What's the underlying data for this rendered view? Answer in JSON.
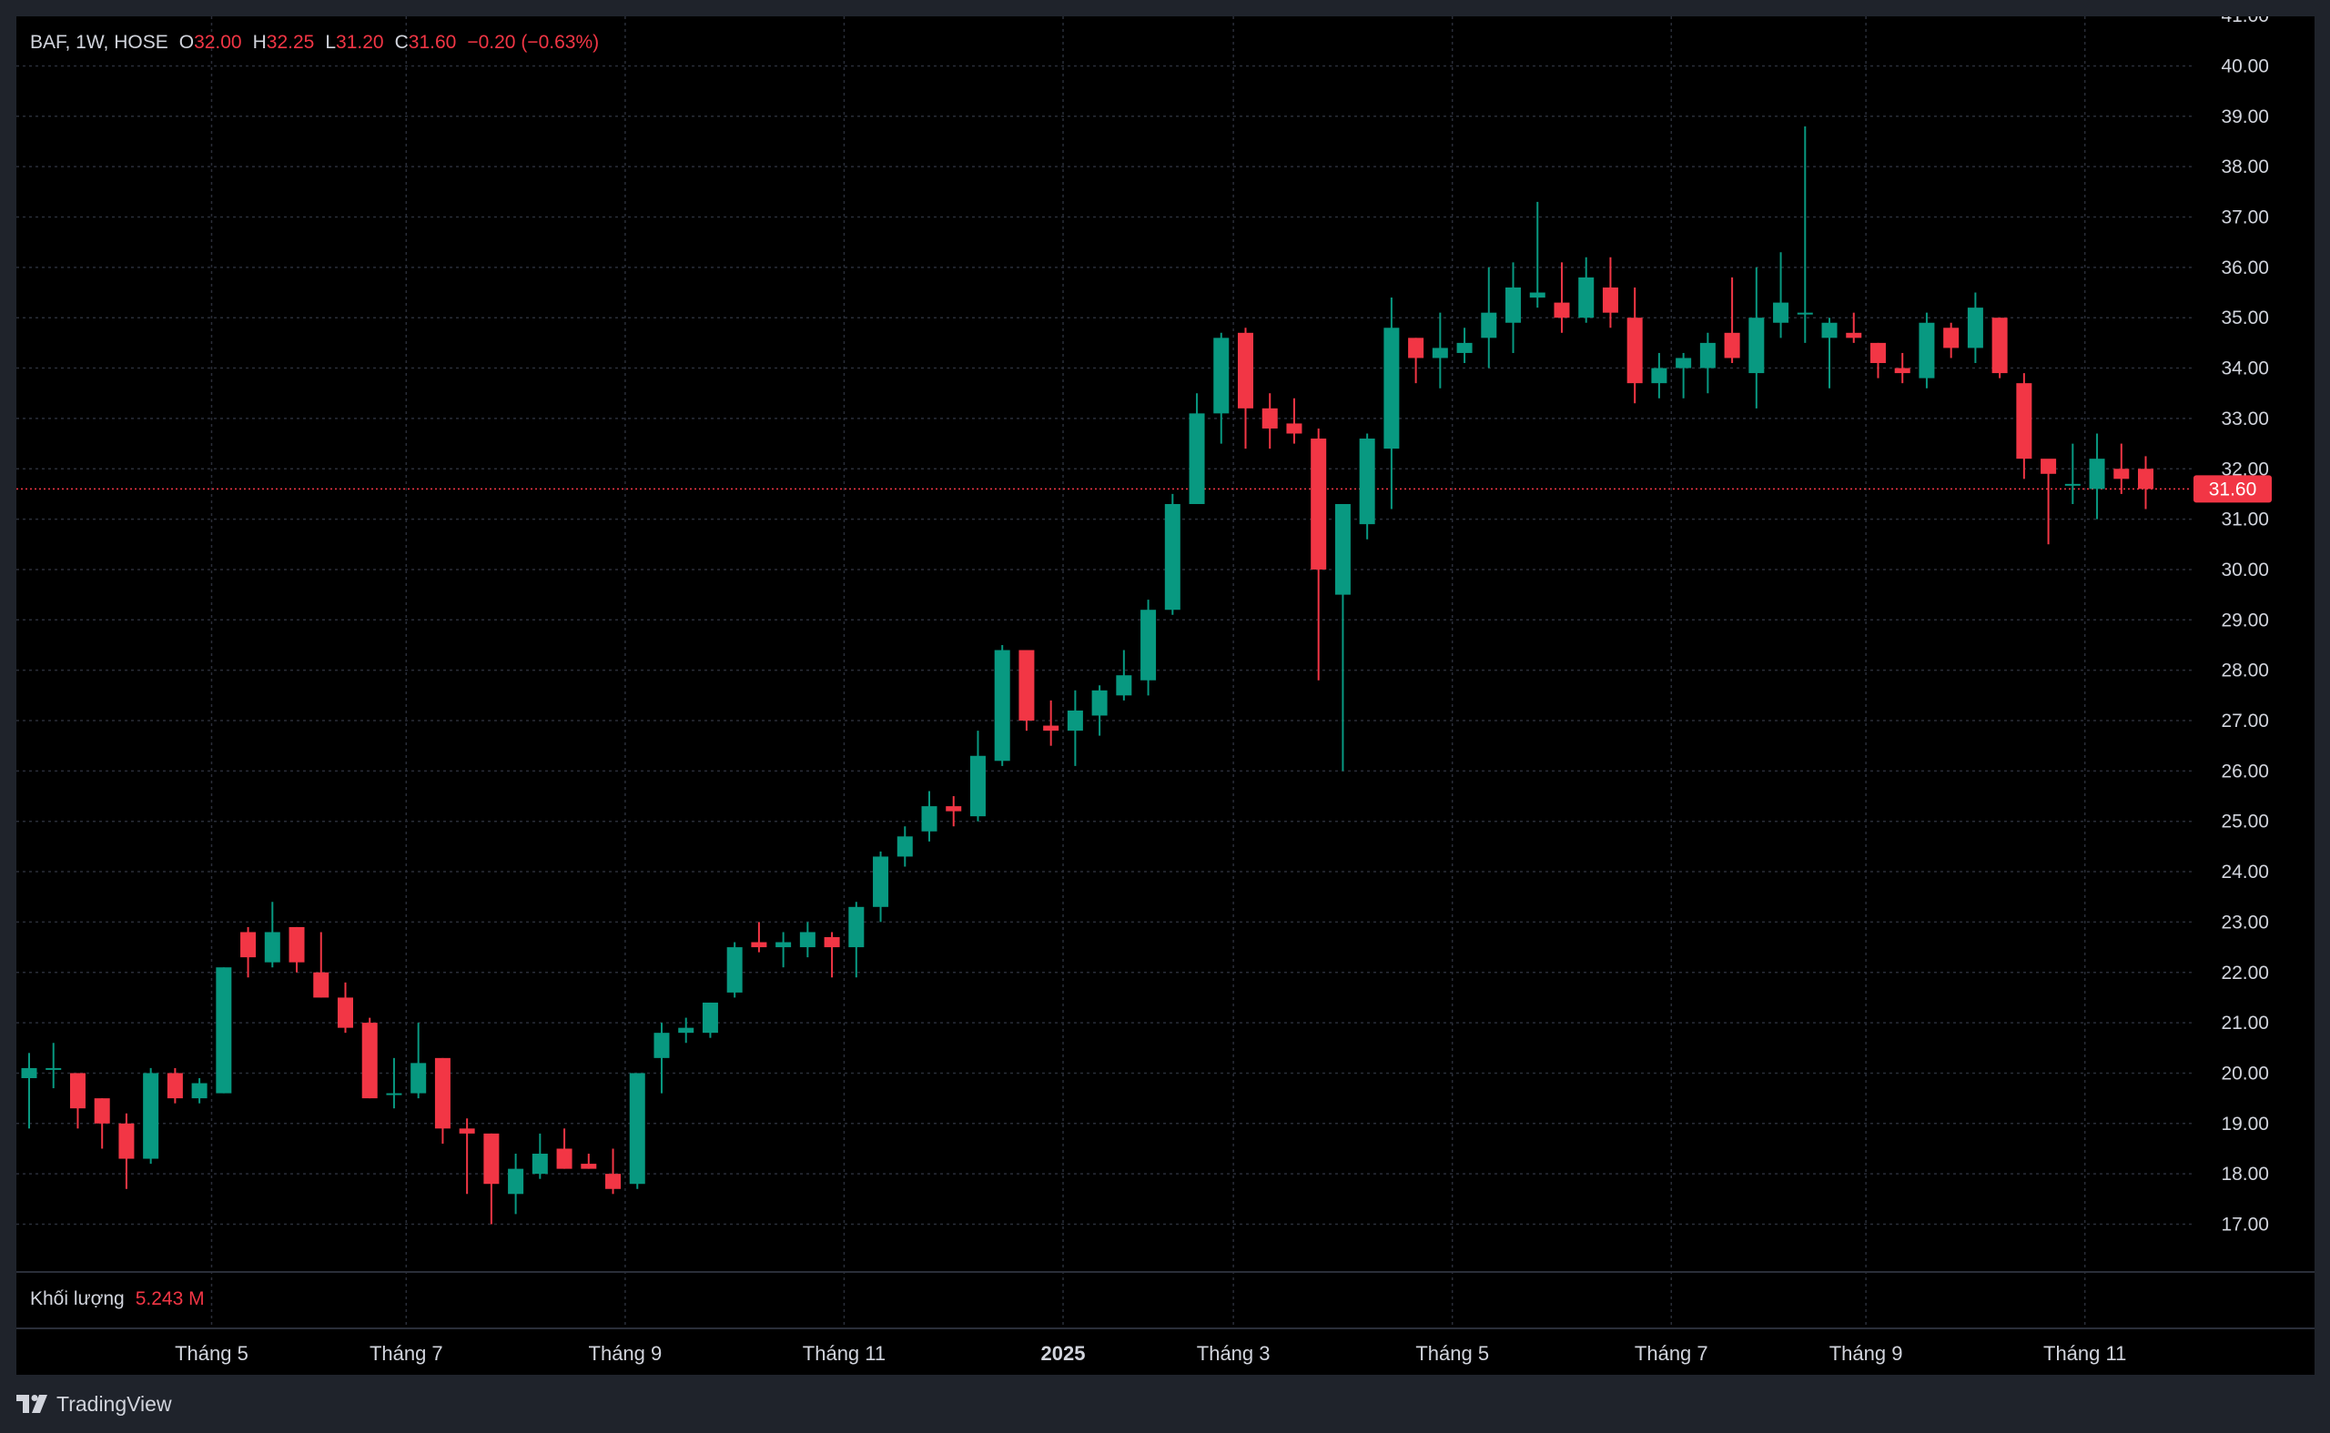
{
  "legend": {
    "symbol": "BAF, 1W, HOSE",
    "o_label": "O",
    "o_value": "32.00",
    "h_label": "H",
    "h_value": "32.25",
    "l_label": "L",
    "l_value": "31.20",
    "c_label": "C",
    "c_value": "31.60",
    "change": "−0.20 (−0.63%)"
  },
  "volume": {
    "label": "Khối lượng",
    "value": "5.243 M"
  },
  "last_price_tag": "31.60",
  "branding": {
    "name": "TradingView",
    "icon": "tradingview-logo-icon"
  },
  "colors": {
    "up": "#089981",
    "down": "#f23645",
    "grid": "#2a2e39",
    "text": "#d1d4dc",
    "price_line": "#f23645"
  },
  "chart_data": {
    "type": "candlestick",
    "timeframe": "1W",
    "ylim": [
      16.0,
      41.0
    ],
    "y_ticks": [
      "17.00",
      "18.00",
      "19.00",
      "20.00",
      "21.00",
      "22.00",
      "23.00",
      "24.00",
      "25.00",
      "26.00",
      "27.00",
      "28.00",
      "29.00",
      "30.00",
      "31.00",
      "32.00",
      "33.00",
      "34.00",
      "35.00",
      "36.00",
      "37.00",
      "38.00",
      "39.00",
      "40.00",
      "41.00"
    ],
    "x_ticks": [
      {
        "label": "Tháng 5",
        "index": 7.5
      },
      {
        "label": "Tháng 7",
        "index": 15.5
      },
      {
        "label": "Tháng 9",
        "index": 24.5
      },
      {
        "label": "Tháng 11",
        "index": 33.5
      },
      {
        "label": "2025",
        "index": 42.5,
        "bold": true
      },
      {
        "label": "Tháng 3",
        "index": 49.5
      },
      {
        "label": "Tháng 5",
        "index": 58.5
      },
      {
        "label": "Tháng 7",
        "index": 67.5
      },
      {
        "label": "Tháng 9",
        "index": 75.5
      },
      {
        "label": "Tháng 11",
        "index": 84.5
      }
    ],
    "candles": [
      {
        "o": 19.9,
        "h": 20.4,
        "l": 18.9,
        "c": 20.1
      },
      {
        "o": 20.1,
        "h": 20.6,
        "l": 19.7,
        "c": 20.1
      },
      {
        "o": 20.0,
        "h": 20.0,
        "l": 18.9,
        "c": 19.3
      },
      {
        "o": 19.5,
        "h": 19.5,
        "l": 18.5,
        "c": 19.0
      },
      {
        "o": 19.0,
        "h": 19.2,
        "l": 17.7,
        "c": 18.3
      },
      {
        "o": 18.3,
        "h": 20.1,
        "l": 18.2,
        "c": 20.0
      },
      {
        "o": 20.0,
        "h": 20.1,
        "l": 19.4,
        "c": 19.5
      },
      {
        "o": 19.5,
        "h": 19.9,
        "l": 19.4,
        "c": 19.8
      },
      {
        "o": 19.6,
        "h": 22.1,
        "l": 19.6,
        "c": 22.1
      },
      {
        "o": 22.8,
        "h": 22.9,
        "l": 21.9,
        "c": 22.3
      },
      {
        "o": 22.2,
        "h": 23.4,
        "l": 22.1,
        "c": 22.8
      },
      {
        "o": 22.9,
        "h": 22.9,
        "l": 22.0,
        "c": 22.2
      },
      {
        "o": 22.0,
        "h": 22.8,
        "l": 21.5,
        "c": 21.5
      },
      {
        "o": 21.5,
        "h": 21.8,
        "l": 20.8,
        "c": 20.9
      },
      {
        "o": 21.0,
        "h": 21.1,
        "l": 19.5,
        "c": 19.5
      },
      {
        "o": 19.6,
        "h": 20.3,
        "l": 19.3,
        "c": 19.6
      },
      {
        "o": 19.6,
        "h": 21.0,
        "l": 19.5,
        "c": 20.2
      },
      {
        "o": 20.3,
        "h": 20.3,
        "l": 18.6,
        "c": 18.9
      },
      {
        "o": 18.9,
        "h": 19.1,
        "l": 17.6,
        "c": 18.8
      },
      {
        "o": 18.8,
        "h": 18.8,
        "l": 17.0,
        "c": 17.8
      },
      {
        "o": 17.6,
        "h": 18.4,
        "l": 17.2,
        "c": 18.1
      },
      {
        "o": 18.0,
        "h": 18.8,
        "l": 17.9,
        "c": 18.4
      },
      {
        "o": 18.5,
        "h": 18.9,
        "l": 18.1,
        "c": 18.1
      },
      {
        "o": 18.2,
        "h": 18.4,
        "l": 18.1,
        "c": 18.1
      },
      {
        "o": 18.0,
        "h": 18.5,
        "l": 17.6,
        "c": 17.7
      },
      {
        "o": 17.8,
        "h": 20.0,
        "l": 17.7,
        "c": 20.0
      },
      {
        "o": 20.3,
        "h": 21.0,
        "l": 19.6,
        "c": 20.8
      },
      {
        "o": 20.8,
        "h": 21.1,
        "l": 20.6,
        "c": 20.9
      },
      {
        "o": 20.8,
        "h": 21.4,
        "l": 20.7,
        "c": 21.4
      },
      {
        "o": 21.6,
        "h": 22.6,
        "l": 21.5,
        "c": 22.5
      },
      {
        "o": 22.6,
        "h": 23.0,
        "l": 22.4,
        "c": 22.5
      },
      {
        "o": 22.5,
        "h": 22.8,
        "l": 22.1,
        "c": 22.6
      },
      {
        "o": 22.5,
        "h": 23.0,
        "l": 22.3,
        "c": 22.8
      },
      {
        "o": 22.7,
        "h": 22.8,
        "l": 21.9,
        "c": 22.5
      },
      {
        "o": 22.5,
        "h": 23.4,
        "l": 21.9,
        "c": 23.3
      },
      {
        "o": 23.3,
        "h": 24.4,
        "l": 23.0,
        "c": 24.3
      },
      {
        "o": 24.3,
        "h": 24.9,
        "l": 24.1,
        "c": 24.7
      },
      {
        "o": 24.8,
        "h": 25.6,
        "l": 24.6,
        "c": 25.3
      },
      {
        "o": 25.3,
        "h": 25.5,
        "l": 24.9,
        "c": 25.2
      },
      {
        "o": 25.1,
        "h": 26.8,
        "l": 25.0,
        "c": 26.3
      },
      {
        "o": 26.2,
        "h": 28.5,
        "l": 26.1,
        "c": 28.4
      },
      {
        "o": 28.4,
        "h": 28.4,
        "l": 26.8,
        "c": 27.0
      },
      {
        "o": 26.9,
        "h": 27.4,
        "l": 26.5,
        "c": 26.8
      },
      {
        "o": 26.8,
        "h": 27.6,
        "l": 26.1,
        "c": 27.2
      },
      {
        "o": 27.1,
        "h": 27.7,
        "l": 26.7,
        "c": 27.6
      },
      {
        "o": 27.5,
        "h": 28.4,
        "l": 27.4,
        "c": 27.9
      },
      {
        "o": 27.8,
        "h": 29.4,
        "l": 27.5,
        "c": 29.2
      },
      {
        "o": 29.2,
        "h": 31.5,
        "l": 29.1,
        "c": 31.3
      },
      {
        "o": 31.3,
        "h": 33.5,
        "l": 31.3,
        "c": 33.1
      },
      {
        "o": 33.1,
        "h": 34.7,
        "l": 32.5,
        "c": 34.6
      },
      {
        "o": 34.7,
        "h": 34.8,
        "l": 32.4,
        "c": 33.2
      },
      {
        "o": 33.2,
        "h": 33.5,
        "l": 32.4,
        "c": 32.8
      },
      {
        "o": 32.9,
        "h": 33.4,
        "l": 32.5,
        "c": 32.7
      },
      {
        "o": 32.6,
        "h": 32.8,
        "l": 27.8,
        "c": 30.0
      },
      {
        "o": 29.5,
        "h": 31.3,
        "l": 26.0,
        "c": 31.3
      },
      {
        "o": 30.9,
        "h": 32.7,
        "l": 30.6,
        "c": 32.6
      },
      {
        "o": 32.4,
        "h": 35.4,
        "l": 31.2,
        "c": 34.8
      },
      {
        "o": 34.6,
        "h": 34.6,
        "l": 33.7,
        "c": 34.2
      },
      {
        "o": 34.2,
        "h": 35.1,
        "l": 33.6,
        "c": 34.4
      },
      {
        "o": 34.3,
        "h": 34.8,
        "l": 34.1,
        "c": 34.5
      },
      {
        "o": 34.6,
        "h": 36.0,
        "l": 34.0,
        "c": 35.1
      },
      {
        "o": 34.9,
        "h": 36.1,
        "l": 34.3,
        "c": 35.6
      },
      {
        "o": 35.4,
        "h": 37.3,
        "l": 35.2,
        "c": 35.5
      },
      {
        "o": 35.3,
        "h": 36.1,
        "l": 34.7,
        "c": 35.0
      },
      {
        "o": 35.0,
        "h": 36.2,
        "l": 34.9,
        "c": 35.8
      },
      {
        "o": 35.6,
        "h": 36.2,
        "l": 34.8,
        "c": 35.1
      },
      {
        "o": 35.0,
        "h": 35.6,
        "l": 33.3,
        "c": 33.7
      },
      {
        "o": 33.7,
        "h": 34.3,
        "l": 33.4,
        "c": 34.0
      },
      {
        "o": 34.0,
        "h": 34.3,
        "l": 33.4,
        "c": 34.2
      },
      {
        "o": 34.0,
        "h": 34.7,
        "l": 33.5,
        "c": 34.5
      },
      {
        "o": 34.7,
        "h": 35.8,
        "l": 34.1,
        "c": 34.2
      },
      {
        "o": 33.9,
        "h": 36.0,
        "l": 33.2,
        "c": 35.0
      },
      {
        "o": 34.9,
        "h": 36.3,
        "l": 34.6,
        "c": 35.3
      },
      {
        "o": 35.1,
        "h": 38.8,
        "l": 34.5,
        "c": 35.1
      },
      {
        "o": 34.6,
        "h": 35.0,
        "l": 33.6,
        "c": 34.9
      },
      {
        "o": 34.7,
        "h": 35.1,
        "l": 34.5,
        "c": 34.6
      },
      {
        "o": 34.5,
        "h": 34.5,
        "l": 33.8,
        "c": 34.1
      },
      {
        "o": 34.0,
        "h": 34.3,
        "l": 33.7,
        "c": 33.9
      },
      {
        "o": 33.8,
        "h": 35.1,
        "l": 33.6,
        "c": 34.9
      },
      {
        "o": 34.8,
        "h": 34.9,
        "l": 34.2,
        "c": 34.4
      },
      {
        "o": 34.4,
        "h": 35.5,
        "l": 34.1,
        "c": 35.2
      },
      {
        "o": 35.0,
        "h": 35.0,
        "l": 33.8,
        "c": 33.9
      },
      {
        "o": 33.7,
        "h": 33.9,
        "l": 31.8,
        "c": 32.2
      },
      {
        "o": 32.2,
        "h": 32.1,
        "l": 30.5,
        "c": 31.9
      },
      {
        "o": 31.7,
        "h": 32.5,
        "l": 31.3,
        "c": 31.7
      },
      {
        "o": 31.6,
        "h": 32.7,
        "l": 31.0,
        "c": 32.2
      },
      {
        "o": 32.0,
        "h": 32.5,
        "l": 31.5,
        "c": 31.8
      },
      {
        "o": 32.0,
        "h": 32.25,
        "l": 31.2,
        "c": 31.6
      }
    ],
    "last_price": 31.6
  }
}
